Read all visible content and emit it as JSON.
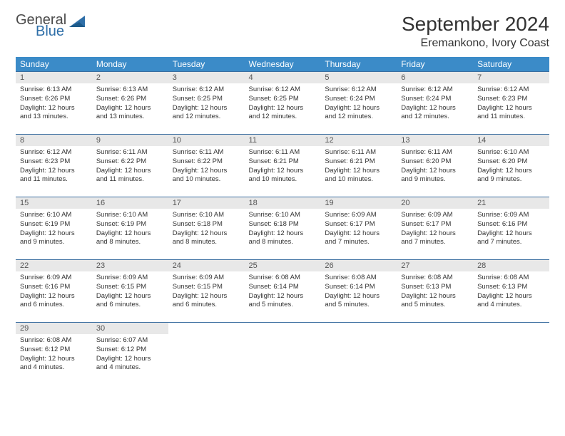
{
  "logo": {
    "word1": "General",
    "word2": "Blue",
    "word1_color": "#4a4a4a",
    "word2_color": "#2f6fa8"
  },
  "title": "September 2024",
  "location": "Eremankono, Ivory Coast",
  "header_bg": "#3b8bc8",
  "header_text_color": "#ffffff",
  "daynum_bg": "#e8e8e8",
  "border_color": "#3b6ea0",
  "weekdays": [
    "Sunday",
    "Monday",
    "Tuesday",
    "Wednesday",
    "Thursday",
    "Friday",
    "Saturday"
  ],
  "days": [
    {
      "n": "1",
      "sr": "6:13 AM",
      "ss": "6:26 PM",
      "dl": "12 hours and 13 minutes."
    },
    {
      "n": "2",
      "sr": "6:13 AM",
      "ss": "6:26 PM",
      "dl": "12 hours and 13 minutes."
    },
    {
      "n": "3",
      "sr": "6:12 AM",
      "ss": "6:25 PM",
      "dl": "12 hours and 12 minutes."
    },
    {
      "n": "4",
      "sr": "6:12 AM",
      "ss": "6:25 PM",
      "dl": "12 hours and 12 minutes."
    },
    {
      "n": "5",
      "sr": "6:12 AM",
      "ss": "6:24 PM",
      "dl": "12 hours and 12 minutes."
    },
    {
      "n": "6",
      "sr": "6:12 AM",
      "ss": "6:24 PM",
      "dl": "12 hours and 12 minutes."
    },
    {
      "n": "7",
      "sr": "6:12 AM",
      "ss": "6:23 PM",
      "dl": "12 hours and 11 minutes."
    },
    {
      "n": "8",
      "sr": "6:12 AM",
      "ss": "6:23 PM",
      "dl": "12 hours and 11 minutes."
    },
    {
      "n": "9",
      "sr": "6:11 AM",
      "ss": "6:22 PM",
      "dl": "12 hours and 11 minutes."
    },
    {
      "n": "10",
      "sr": "6:11 AM",
      "ss": "6:22 PM",
      "dl": "12 hours and 10 minutes."
    },
    {
      "n": "11",
      "sr": "6:11 AM",
      "ss": "6:21 PM",
      "dl": "12 hours and 10 minutes."
    },
    {
      "n": "12",
      "sr": "6:11 AM",
      "ss": "6:21 PM",
      "dl": "12 hours and 10 minutes."
    },
    {
      "n": "13",
      "sr": "6:11 AM",
      "ss": "6:20 PM",
      "dl": "12 hours and 9 minutes."
    },
    {
      "n": "14",
      "sr": "6:10 AM",
      "ss": "6:20 PM",
      "dl": "12 hours and 9 minutes."
    },
    {
      "n": "15",
      "sr": "6:10 AM",
      "ss": "6:19 PM",
      "dl": "12 hours and 9 minutes."
    },
    {
      "n": "16",
      "sr": "6:10 AM",
      "ss": "6:19 PM",
      "dl": "12 hours and 8 minutes."
    },
    {
      "n": "17",
      "sr": "6:10 AM",
      "ss": "6:18 PM",
      "dl": "12 hours and 8 minutes."
    },
    {
      "n": "18",
      "sr": "6:10 AM",
      "ss": "6:18 PM",
      "dl": "12 hours and 8 minutes."
    },
    {
      "n": "19",
      "sr": "6:09 AM",
      "ss": "6:17 PM",
      "dl": "12 hours and 7 minutes."
    },
    {
      "n": "20",
      "sr": "6:09 AM",
      "ss": "6:17 PM",
      "dl": "12 hours and 7 minutes."
    },
    {
      "n": "21",
      "sr": "6:09 AM",
      "ss": "6:16 PM",
      "dl": "12 hours and 7 minutes."
    },
    {
      "n": "22",
      "sr": "6:09 AM",
      "ss": "6:16 PM",
      "dl": "12 hours and 6 minutes."
    },
    {
      "n": "23",
      "sr": "6:09 AM",
      "ss": "6:15 PM",
      "dl": "12 hours and 6 minutes."
    },
    {
      "n": "24",
      "sr": "6:09 AM",
      "ss": "6:15 PM",
      "dl": "12 hours and 6 minutes."
    },
    {
      "n": "25",
      "sr": "6:08 AM",
      "ss": "6:14 PM",
      "dl": "12 hours and 5 minutes."
    },
    {
      "n": "26",
      "sr": "6:08 AM",
      "ss": "6:14 PM",
      "dl": "12 hours and 5 minutes."
    },
    {
      "n": "27",
      "sr": "6:08 AM",
      "ss": "6:13 PM",
      "dl": "12 hours and 5 minutes."
    },
    {
      "n": "28",
      "sr": "6:08 AM",
      "ss": "6:13 PM",
      "dl": "12 hours and 4 minutes."
    },
    {
      "n": "29",
      "sr": "6:08 AM",
      "ss": "6:12 PM",
      "dl": "12 hours and 4 minutes."
    },
    {
      "n": "30",
      "sr": "6:07 AM",
      "ss": "6:12 PM",
      "dl": "12 hours and 4 minutes."
    }
  ],
  "labels": {
    "sunrise": "Sunrise:",
    "sunset": "Sunset:",
    "daylight": "Daylight:"
  },
  "start_offset": 0,
  "total_cells": 35
}
